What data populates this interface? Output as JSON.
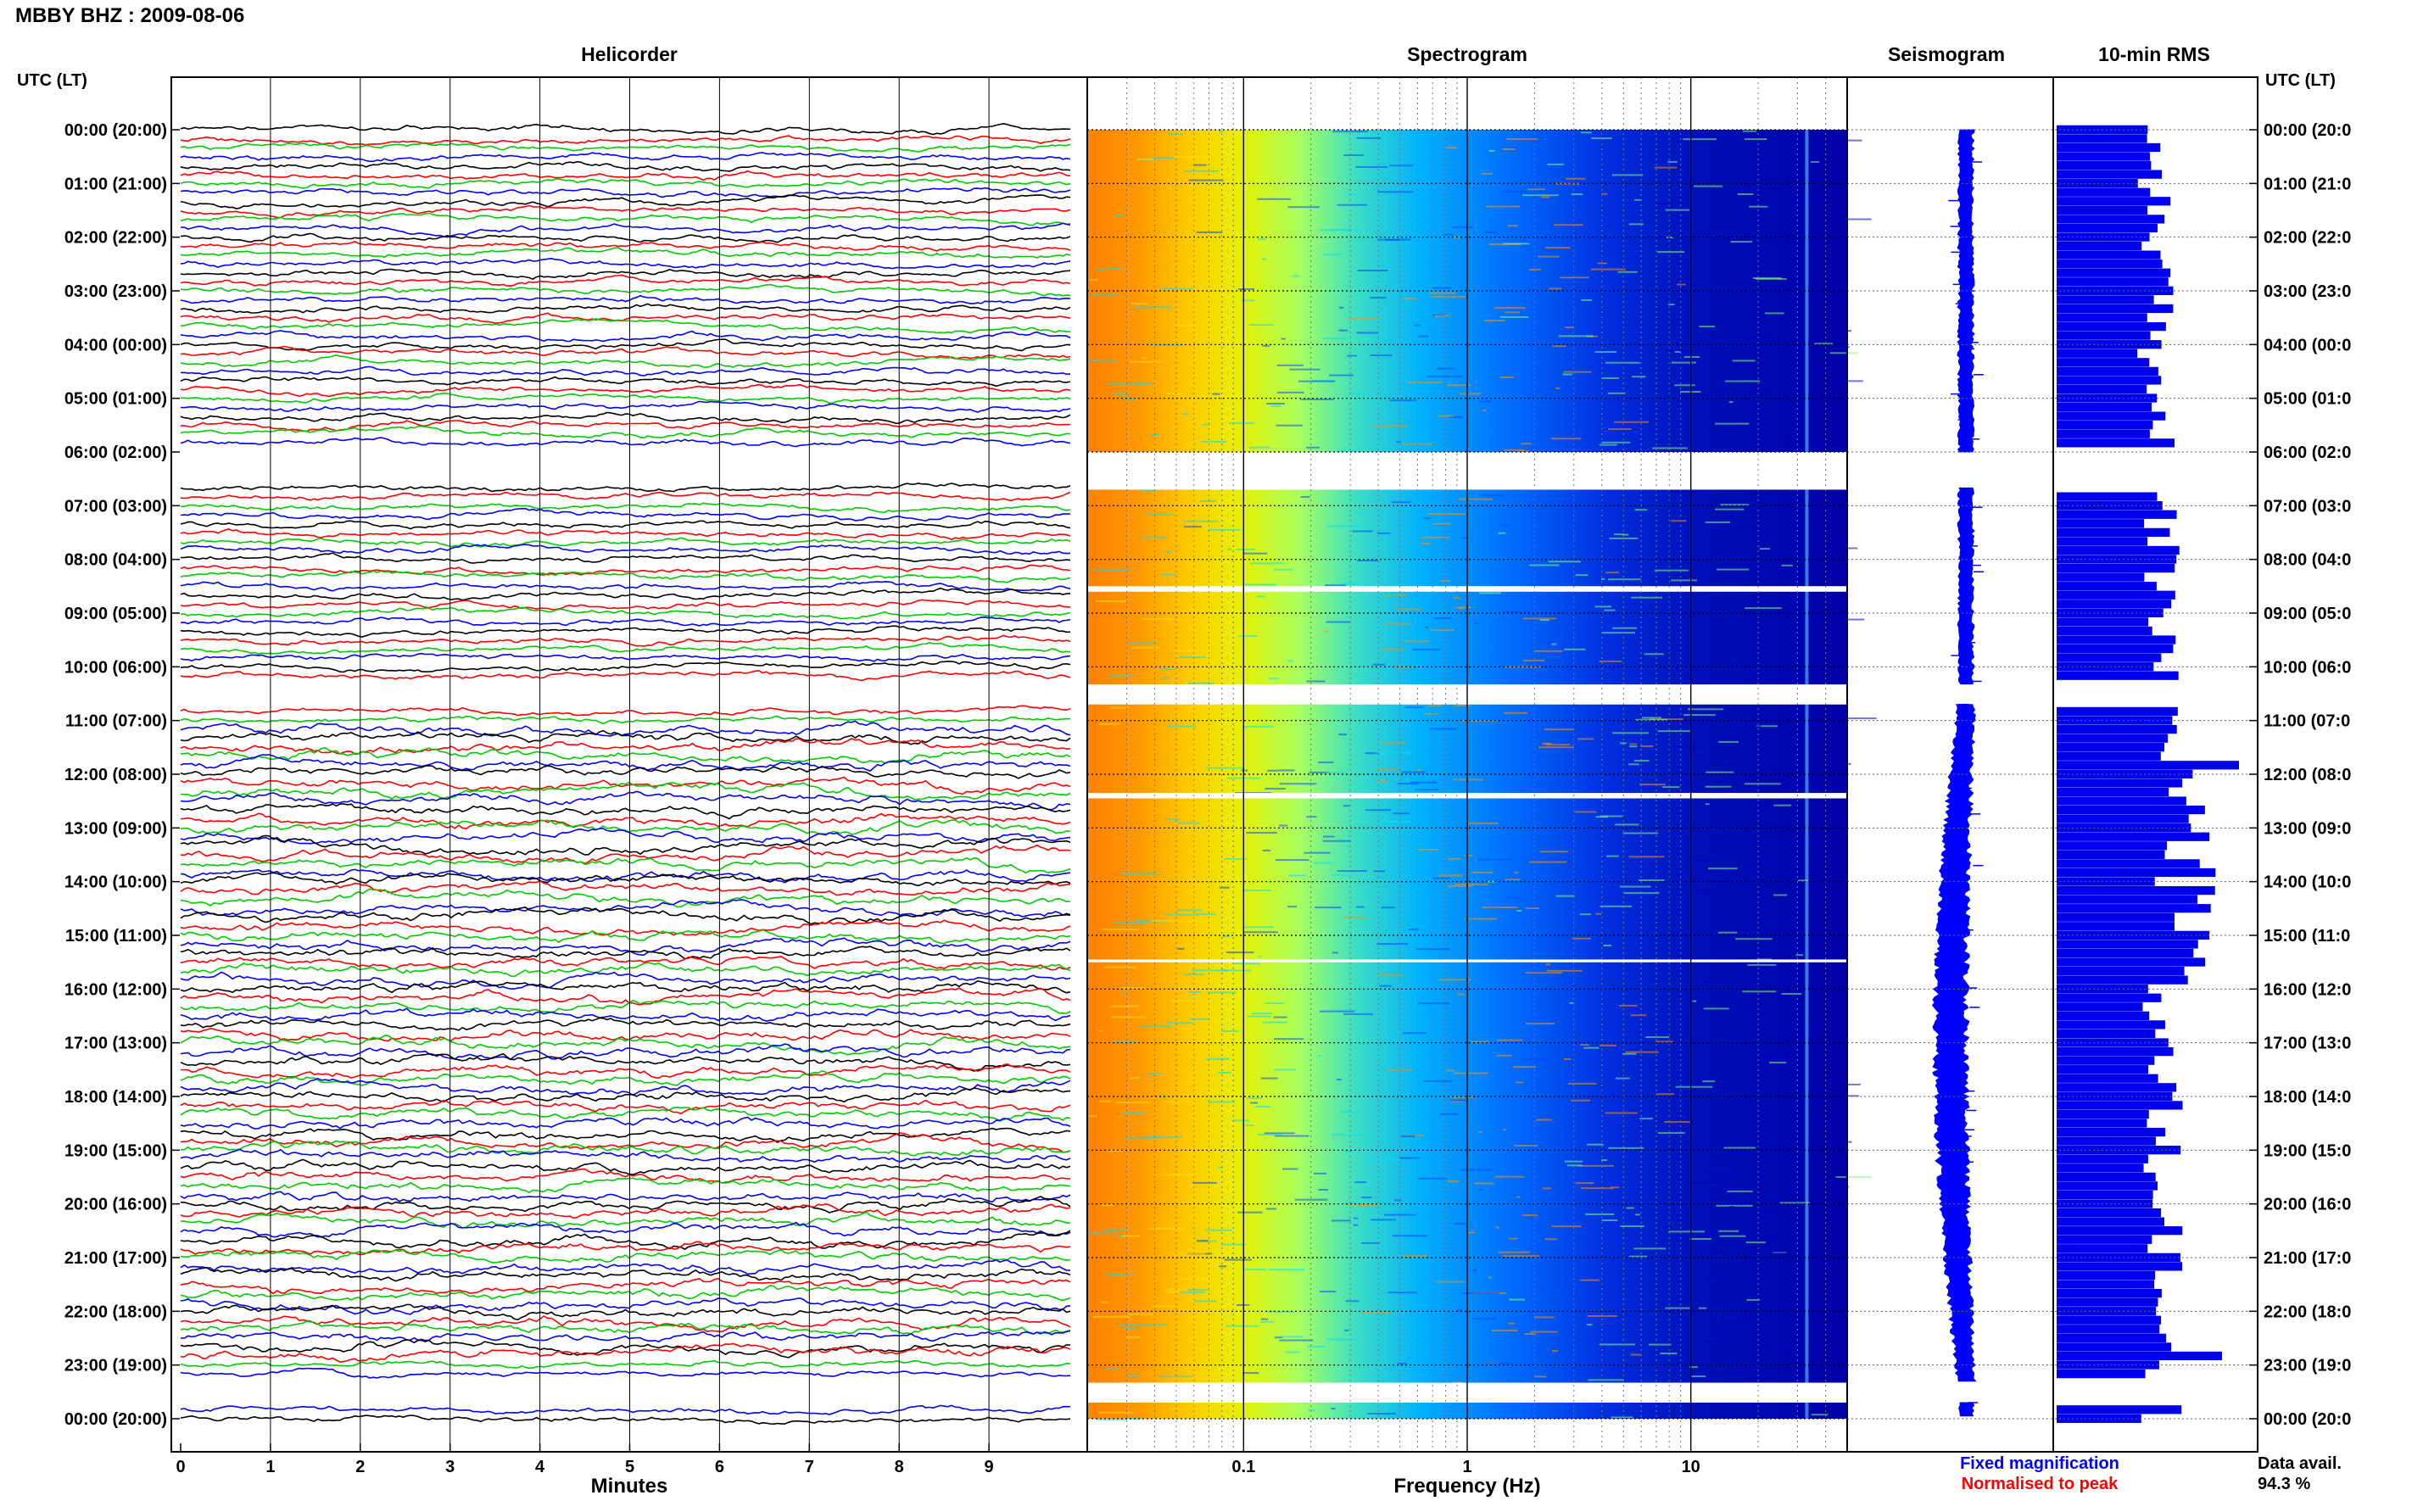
{
  "header": {
    "title": "MBBY BHZ : 2009-08-06"
  },
  "chart_data": [
    {
      "type": "line",
      "title": "Helicorder",
      "xlabel": "Minutes",
      "ylabel": "UTC (LT)",
      "xlim": [
        0,
        10
      ],
      "x_ticks": [
        "0",
        "1",
        "2",
        "3",
        "4",
        "5",
        "6",
        "7",
        "8",
        "9"
      ],
      "hour_labels_utc_lt": [
        "00:00 (20:00)",
        "01:00 (21:00)",
        "02:00 (22:00)",
        "03:00 (23:00)",
        "04:00 (00:00)",
        "05:00 (01:00)",
        "06:00 (02:00)",
        "07:00 (03:00)",
        "08:00 (04:00)",
        "09:00 (05:00)",
        "10:00 (06:00)",
        "11:00 (07:00)",
        "12:00 (08:00)",
        "13:00 (09:00)",
        "14:00 (10:00)",
        "15:00 (11:00)",
        "16:00 (12:00)",
        "17:00 (13:00)",
        "18:00 (14:00)",
        "19:00 (15:00)",
        "20:00 (16:00)",
        "21:00 (17:00)",
        "22:00 (18:00)",
        "23:00 (19:00)",
        "00:00 (20:00)"
      ],
      "right_hour_labels": [
        "00:00 (20:0",
        "01:00 (21:0",
        "02:00 (22:0",
        "03:00 (23:0",
        "04:00 (00:0",
        "05:00 (01:0",
        "06:00 (02:0",
        "07:00 (03:0",
        "08:00 (04:0",
        "09:00 (05:0",
        "10:00 (06:0",
        "11:00 (07:0",
        "12:00 (08:0",
        "13:00 (09:0",
        "14:00 (10:0",
        "15:00 (11:0",
        "16:00 (12:0",
        "17:00 (13:0",
        "18:00 (14:0",
        "19:00 (15:0",
        "20:00 (16:0",
        "21:00 (17:0",
        "22:00 (18:0",
        "23:00 (19:0",
        "00:00 (20:0"
      ],
      "trace_colors": [
        "#000000",
        "#ff0000",
        "#00cc00",
        "#0000ff"
      ],
      "traces_per_hour": 6,
      "data_gaps_hours": [
        [
          6.0,
          6.6
        ],
        [
          10.33,
          10.67
        ],
        [
          23.33,
          23.67
        ]
      ]
    },
    {
      "type": "heatmap",
      "title": "Spectrogram",
      "xlabel": "Frequency (Hz)",
      "x_scale": "log",
      "xlim": [
        0.02,
        50
      ],
      "x_tick_labels": [
        {
          "value": 0.1,
          "label": "0.1"
        },
        {
          "value": 1,
          "label": "1"
        },
        {
          "value": 10,
          "label": "10"
        }
      ],
      "colormap": [
        "#ff7a00",
        "#ffd000",
        "#7fff7f",
        "#00c8ff",
        "#0040ff",
        "#0000a0"
      ],
      "dominant_energy_below_hz": 0.1,
      "spectral_line_hz": 33,
      "data_gaps_hours": [
        [
          6.0,
          6.7
        ],
        [
          8.5,
          8.6
        ],
        [
          10.33,
          10.7
        ],
        [
          12.35,
          12.45
        ],
        [
          15.45,
          15.5
        ],
        [
          23.33,
          23.7
        ]
      ]
    },
    {
      "type": "line",
      "title": "Seismogram",
      "legend": [
        "Fixed magnification",
        "Normalised to peak"
      ],
      "legend_colors": [
        "#0000ff",
        "#ff0000"
      ]
    },
    {
      "type": "bar",
      "title": "10-min RMS",
      "orientation": "horizontal",
      "color": "#0000ee",
      "note": [
        "Data avail.",
        "94.3 %"
      ]
    }
  ]
}
